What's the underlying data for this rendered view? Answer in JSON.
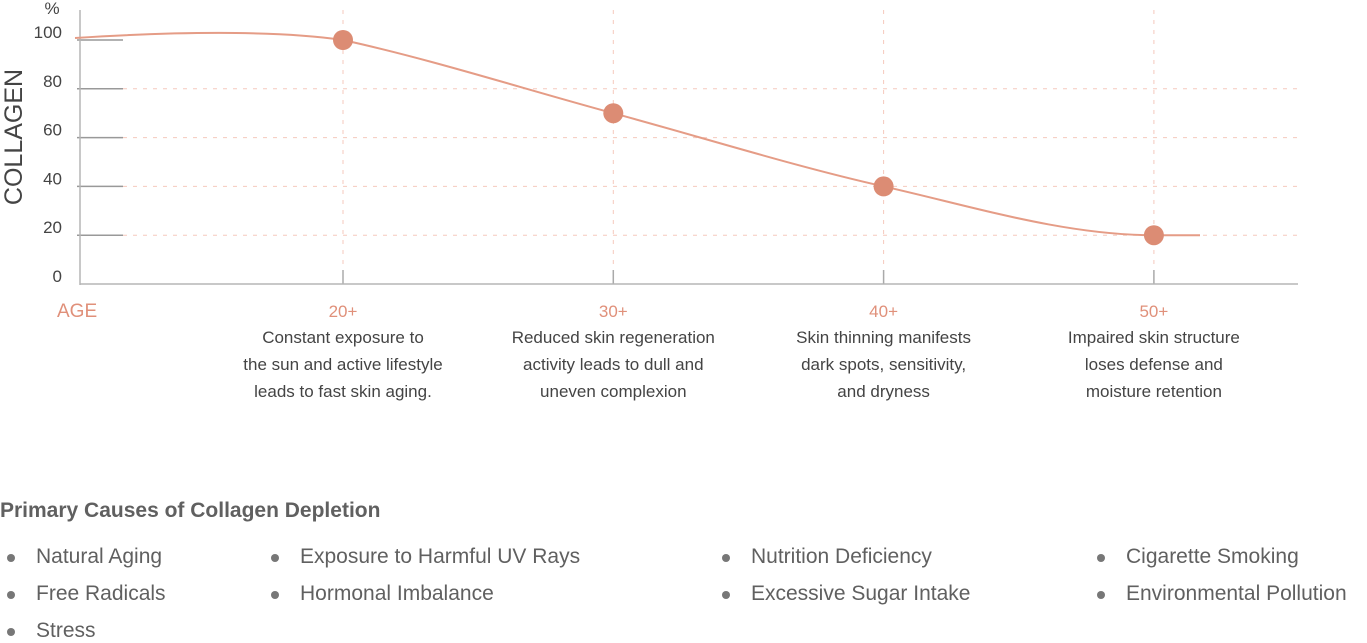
{
  "chart_data": {
    "type": "line",
    "ylabel": "COLLAGEN",
    "yunit": "%",
    "xlabel": "AGE",
    "ylim": [
      0,
      100
    ],
    "yticks": [
      "0",
      "20",
      "40",
      "60",
      "80",
      "100"
    ],
    "categories": [
      "20+",
      "30+",
      "40+",
      "50+"
    ],
    "values": [
      100,
      70,
      40,
      20
    ],
    "descriptions": [
      [
        "Constant exposure to",
        "the sun and active lifestyle",
        "leads to fast skin aging."
      ],
      [
        "Reduced skin regeneration",
        "activity leads to dull and",
        "uneven complexion"
      ],
      [
        "Skin thinning manifests",
        "dark spots, sensitivity,",
        "and dryness"
      ],
      [
        "Impaired skin structure",
        "loses defense and",
        "moisture retention"
      ]
    ],
    "grid": true,
    "colors": {
      "line": "#e59c86",
      "marker": "#dc8c74",
      "grid": "#f5c9bd",
      "axis": "#b5b5b5",
      "accent_text": "#e0907a"
    }
  },
  "causes": {
    "title": "Primary Causes of Collagen Depletion",
    "items": [
      "Natural Aging",
      "Free Radicals",
      "Stress",
      "Exposure to Harmful UV Rays",
      "Hormonal Imbalance",
      "Nutrition Deficiency",
      "Excessive Sugar Intake",
      "Cigarette Smoking",
      "Environmental Pollution"
    ]
  }
}
